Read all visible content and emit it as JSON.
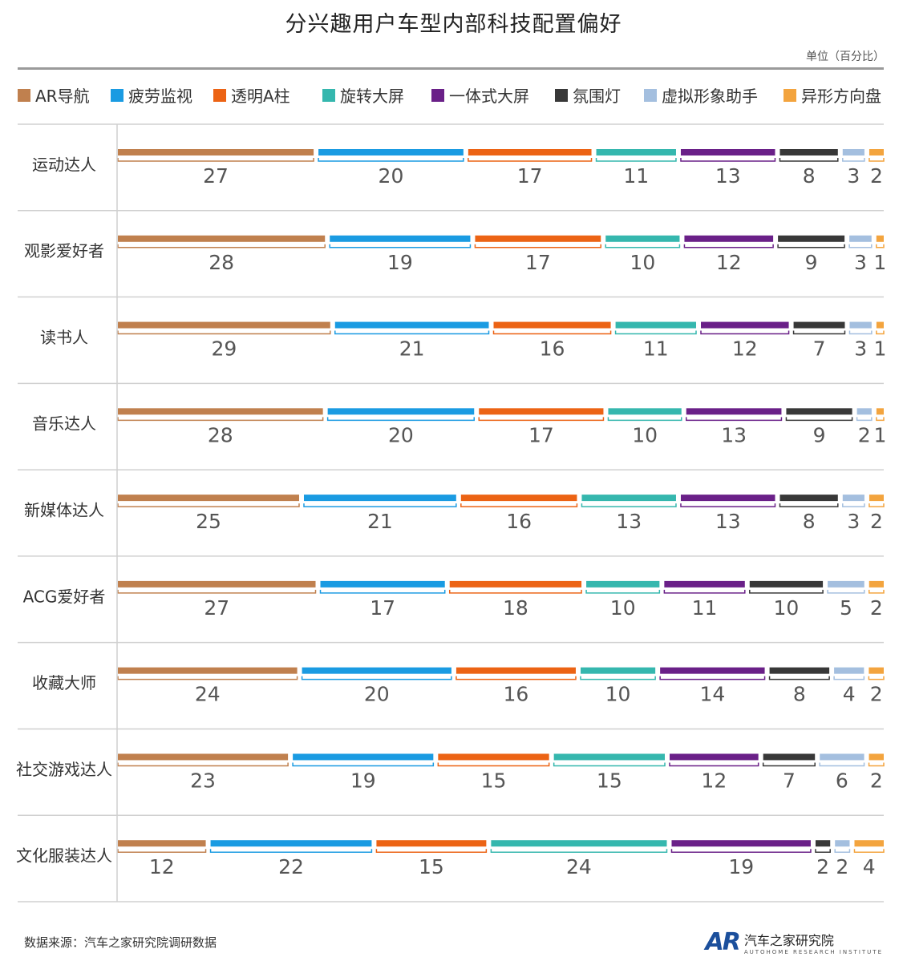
{
  "chart_data": {
    "type": "bar",
    "stacked": true,
    "orientation": "horizontal",
    "title": "分兴趣用户车型内部科技配置偏好",
    "unit": "单位（百分比）",
    "legend_placement": "top",
    "categories": [
      "运动达人",
      "观影爱好者",
      "读书人",
      "音乐达人",
      "新媒体达人",
      "ACG爱好者",
      "收藏大师",
      "社交游戏达人",
      "文化服装达人"
    ],
    "series": [
      {
        "name": "AR导航",
        "color": "#C0804E",
        "values": [
          27,
          28,
          29,
          28,
          25,
          27,
          24,
          23,
          12
        ]
      },
      {
        "name": "疲劳监视",
        "color": "#1A9BE2",
        "values": [
          20,
          19,
          21,
          20,
          21,
          17,
          20,
          19,
          22
        ]
      },
      {
        "name": "透明A柱",
        "color": "#EC6314",
        "values": [
          17,
          17,
          16,
          17,
          16,
          18,
          16,
          15,
          15
        ]
      },
      {
        "name": "旋转大屏",
        "color": "#35B7AE",
        "values": [
          11,
          10,
          11,
          10,
          13,
          10,
          10,
          15,
          24
        ]
      },
      {
        "name": "一体式大屏",
        "color": "#6A2088",
        "values": [
          13,
          12,
          12,
          13,
          13,
          11,
          14,
          12,
          19
        ]
      },
      {
        "name": "氛围灯",
        "color": "#383838",
        "values": [
          8,
          9,
          7,
          9,
          8,
          10,
          8,
          7,
          2
        ]
      },
      {
        "name": "虚拟形象助手",
        "color": "#A4BFDF",
        "values": [
          3,
          3,
          3,
          2,
          3,
          5,
          4,
          6,
          2
        ]
      },
      {
        "name": "异形方向盘",
        "color": "#F3A43E",
        "values": [
          2,
          1,
          1,
          1,
          2,
          2,
          2,
          2,
          4
        ]
      }
    ]
  },
  "footer": {
    "source": "数据来源：汽车之家研究院调研数据",
    "logo_mark": "AR",
    "brand_name": "汽车之家研究院",
    "brand_sub": "AUTOHOME RESEARCH INSTITUTE"
  }
}
